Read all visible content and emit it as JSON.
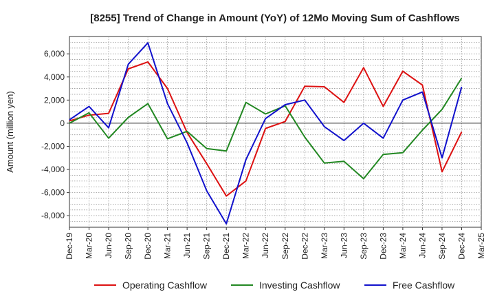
{
  "chart_data": {
    "type": "line",
    "title": "[8255]  Trend of Change in Amount (YoY) of 12Mo Moving Sum of Cashflows",
    "xlabel": "",
    "ylabel": "Amount (million yen)",
    "ylim": [
      -9000,
      7500
    ],
    "yticks": [
      -8000,
      -6000,
      -4000,
      -2000,
      0,
      2000,
      4000,
      6000
    ],
    "ytick_labels": [
      "-8,000",
      "-6,000",
      "-4,000",
      "-2,000",
      "0",
      "2,000",
      "4,000",
      "6,000"
    ],
    "categories": [
      "Dec-19",
      "Mar-20",
      "Jun-20",
      "Sep-20",
      "Dec-20",
      "Mar-21",
      "Jun-21",
      "Sep-21",
      "Dec-21",
      "Mar-22",
      "Jun-22",
      "Sep-22",
      "Dec-22",
      "Mar-23",
      "Jun-23",
      "Sep-23",
      "Dec-23",
      "Mar-24",
      "Jun-24",
      "Sep-24",
      "Dec-24",
      "Mar-25"
    ],
    "grid": true,
    "legend_position": "bottom",
    "series": [
      {
        "name": "Operating Cashflow",
        "color": "#dd1111",
        "values": [
          200,
          700,
          850,
          4700,
          5300,
          3000,
          -800,
          -3500,
          -6300,
          -5000,
          -450,
          150,
          3200,
          3150,
          1800,
          4800,
          1450,
          4500,
          3300,
          -4200,
          -750,
          null
        ]
      },
      {
        "name": "Investing Cashflow",
        "color": "#228822",
        "values": [
          0,
          900,
          -1300,
          500,
          1700,
          -1350,
          -700,
          -2200,
          -2400,
          1800,
          800,
          1500,
          -1200,
          -3450,
          -3300,
          -4800,
          -2700,
          -2550,
          -600,
          1200,
          3900,
          null
        ]
      },
      {
        "name": "Free Cashflow",
        "color": "#1111cc",
        "values": [
          300,
          1450,
          -400,
          5100,
          6950,
          1700,
          -1700,
          -5850,
          -8700,
          -3150,
          400,
          1600,
          2000,
          -300,
          -1500,
          0,
          -1300,
          2000,
          2700,
          -3000,
          3150,
          null
        ]
      }
    ]
  }
}
